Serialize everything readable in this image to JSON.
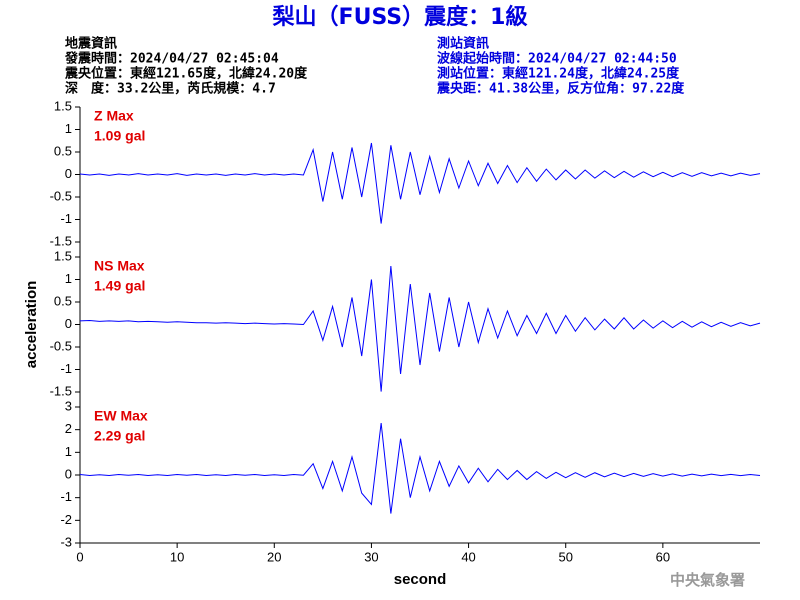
{
  "header": {
    "title": "梨山（FUSS）震度：1級",
    "left": [
      "地震資訊",
      "發震時間：2024/04/27 02:45:04",
      "震央位置：東經121.65度，北緯24.20度",
      "深　度：33.2公里，芮氏規模：4.7"
    ],
    "right": [
      "測站資訊",
      "波線起始時間：2024/04/27 02:44:50",
      "測站位置：東經121.24度，北緯24.25度",
      "震央距：41.38公里，反方位角：97.22度"
    ],
    "footer": "中央氣象署"
  },
  "chart_data": [
    {
      "type": "line",
      "color": "#0000ff",
      "annotation_color": "#e00000",
      "annotations": [
        "Z Max",
        "1.09 gal"
      ],
      "x": [
        0,
        1,
        2,
        3,
        4,
        5,
        6,
        7,
        8,
        9,
        10,
        11,
        12,
        13,
        14,
        15,
        16,
        17,
        18,
        19,
        20,
        21,
        22,
        23,
        24,
        25,
        26,
        27,
        28,
        29,
        30,
        31,
        32,
        33,
        34,
        35,
        36,
        37,
        38,
        39,
        40,
        41,
        42,
        43,
        44,
        45,
        46,
        47,
        48,
        49,
        50,
        51,
        52,
        53,
        54,
        55,
        56,
        57,
        58,
        59,
        60,
        61,
        62,
        63,
        64,
        65,
        66,
        67,
        68,
        69,
        70
      ],
      "values": [
        0.01,
        -0.01,
        0.01,
        -0.02,
        0.01,
        -0.01,
        0.02,
        -0.01,
        0.01,
        -0.01,
        0.02,
        -0.02,
        0.01,
        -0.01,
        0.01,
        -0.02,
        0.01,
        -0.01,
        0.02,
        -0.01,
        0.01,
        -0.01,
        0.01,
        -0.01,
        0.55,
        -0.6,
        0.5,
        -0.55,
        0.6,
        -0.5,
        0.7,
        -1.09,
        0.65,
        -0.55,
        0.5,
        -0.45,
        0.4,
        -0.4,
        0.35,
        -0.3,
        0.3,
        -0.25,
        0.25,
        -0.2,
        0.2,
        -0.18,
        0.15,
        -0.15,
        0.12,
        -0.12,
        0.1,
        -0.1,
        0.1,
        -0.08,
        0.08,
        -0.07,
        0.07,
        -0.06,
        0.06,
        -0.05,
        0.05,
        -0.05,
        0.04,
        -0.04,
        0.04,
        -0.03,
        0.03,
        -0.03,
        0.03,
        -0.02,
        0.02
      ],
      "xlim": [
        0,
        70
      ],
      "ylim": [
        -1.5,
        1.5
      ],
      "yticks": [
        -1.5,
        -1,
        -0.5,
        0,
        0.5,
        1,
        1.5
      ]
    },
    {
      "type": "line",
      "color": "#0000ff",
      "annotation_color": "#e00000",
      "annotations": [
        "NS Max",
        "1.49 gal"
      ],
      "ylabel": "acceleration",
      "x": [
        0,
        1,
        2,
        3,
        4,
        5,
        6,
        7,
        8,
        9,
        10,
        11,
        12,
        13,
        14,
        15,
        16,
        17,
        18,
        19,
        20,
        21,
        22,
        23,
        24,
        25,
        26,
        27,
        28,
        29,
        30,
        31,
        32,
        33,
        34,
        35,
        36,
        37,
        38,
        39,
        40,
        41,
        42,
        43,
        44,
        45,
        46,
        47,
        48,
        49,
        50,
        51,
        52,
        53,
        54,
        55,
        56,
        57,
        58,
        59,
        60,
        61,
        62,
        63,
        64,
        65,
        66,
        67,
        68,
        69,
        70
      ],
      "values": [
        0.08,
        0.09,
        0.07,
        0.08,
        0.07,
        0.08,
        0.06,
        0.07,
        0.06,
        0.05,
        0.06,
        0.05,
        0.04,
        0.04,
        0.03,
        0.04,
        0.03,
        0.02,
        0.03,
        0.02,
        0.01,
        0.02,
        0.01,
        0,
        0.3,
        -0.35,
        0.4,
        -0.5,
        0.6,
        -0.7,
        1.0,
        -1.49,
        1.3,
        -1.1,
        0.9,
        -0.9,
        0.7,
        -0.6,
        0.6,
        -0.5,
        0.5,
        -0.4,
        0.35,
        -0.3,
        0.3,
        -0.25,
        0.2,
        -0.2,
        0.25,
        -0.2,
        0.2,
        -0.15,
        0.15,
        -0.12,
        0.12,
        -0.1,
        0.15,
        -0.1,
        0.1,
        -0.08,
        0.08,
        -0.07,
        0.07,
        -0.06,
        0.06,
        -0.05,
        0.05,
        -0.04,
        0.04,
        -0.03,
        0.03
      ],
      "xlim": [
        0,
        70
      ],
      "ylim": [
        -1.5,
        1.5
      ],
      "yticks": [
        -1.5,
        -1,
        -0.5,
        0,
        0.5,
        1,
        1.5
      ]
    },
    {
      "type": "line",
      "color": "#0000ff",
      "annotation_color": "#e00000",
      "annotations": [
        "EW Max",
        "2.29 gal"
      ],
      "xlabel": "second",
      "x": [
        0,
        1,
        2,
        3,
        4,
        5,
        6,
        7,
        8,
        9,
        10,
        11,
        12,
        13,
        14,
        15,
        16,
        17,
        18,
        19,
        20,
        21,
        22,
        23,
        24,
        25,
        26,
        27,
        28,
        29,
        30,
        31,
        32,
        33,
        34,
        35,
        36,
        37,
        38,
        39,
        40,
        41,
        42,
        43,
        44,
        45,
        46,
        47,
        48,
        49,
        50,
        51,
        52,
        53,
        54,
        55,
        56,
        57,
        58,
        59,
        60,
        61,
        62,
        63,
        64,
        65,
        66,
        67,
        68,
        69,
        70
      ],
      "values": [
        0.02,
        -0.02,
        0.01,
        -0.02,
        0.02,
        -0.01,
        0.02,
        -0.02,
        0.01,
        -0.02,
        0.02,
        -0.01,
        0.02,
        -0.02,
        0.01,
        -0.02,
        0.02,
        -0.01,
        0.02,
        -0.02,
        0.01,
        -0.02,
        0.02,
        -0.01,
        0.5,
        -0.6,
        0.6,
        -0.7,
        0.8,
        -0.8,
        -1.3,
        2.29,
        -1.7,
        1.6,
        -1.0,
        0.8,
        -0.7,
        0.6,
        -0.5,
        0.4,
        -0.35,
        0.3,
        -0.3,
        0.25,
        -0.2,
        0.2,
        -0.2,
        0.15,
        -0.15,
        0.12,
        -0.12,
        0.1,
        -0.1,
        0.1,
        -0.08,
        0.08,
        -0.07,
        0.07,
        -0.06,
        0.06,
        -0.05,
        0.05,
        -0.05,
        0.04,
        -0.04,
        0.04,
        -0.03,
        0.03,
        -0.03,
        0.02,
        -0.02
      ],
      "xlim": [
        0,
        70
      ],
      "ylim": [
        -3,
        3
      ],
      "yticks": [
        -3,
        -2,
        -1,
        0,
        1,
        2,
        3
      ],
      "xticks": [
        0,
        10,
        20,
        30,
        40,
        50,
        60
      ]
    }
  ]
}
